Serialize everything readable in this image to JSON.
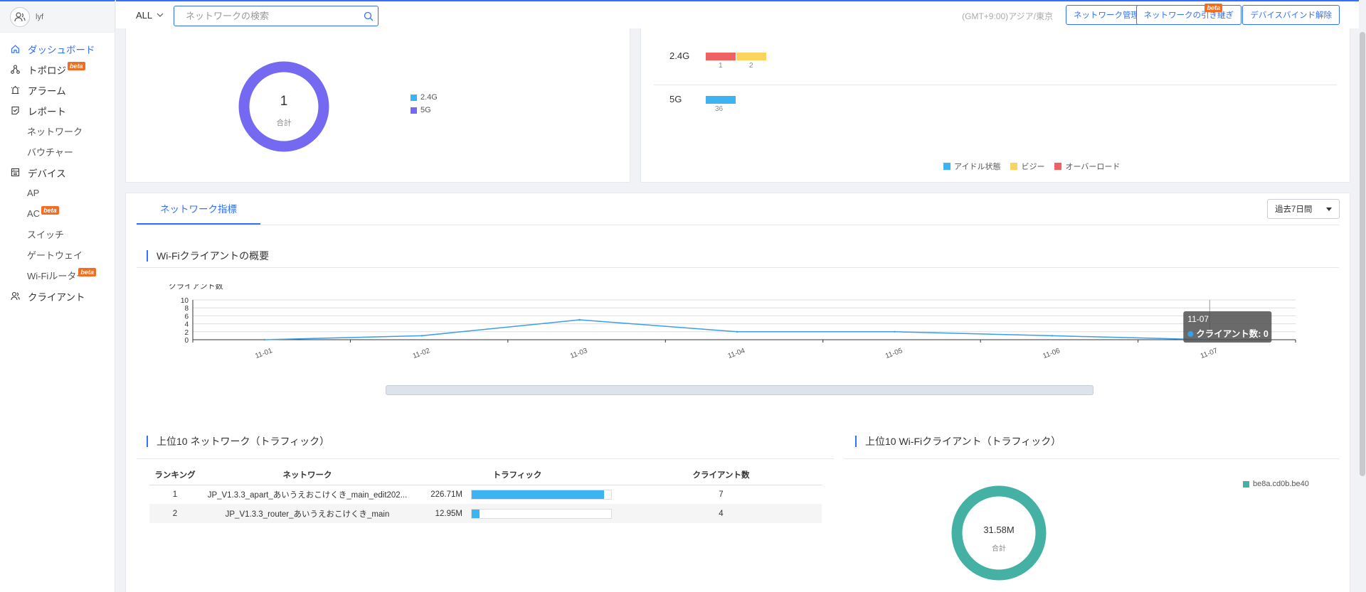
{
  "user": {
    "avatar_text": "&R",
    "name": "lyf"
  },
  "sidebar": {
    "items": [
      {
        "label": "ダッシュボード",
        "icon": "home-icon",
        "active": true
      },
      {
        "label": "トポロジ",
        "icon": "topology-icon",
        "beta": "beta"
      },
      {
        "label": "アラーム",
        "icon": "alarm-icon"
      },
      {
        "label": "レポート",
        "icon": "report-icon",
        "subs": [
          "ネットワーク",
          "バウチャー"
        ]
      },
      {
        "label": "デバイス",
        "icon": "device-icon",
        "subs": [
          "AP",
          "AC",
          "スイッチ",
          "ゲートウェイ",
          "Wi-Fiルーター"
        ]
      },
      {
        "label": "クライアント",
        "icon": "client-icon"
      }
    ],
    "sub_beta": "beta"
  },
  "topbar": {
    "all_label": "ALL",
    "search_placeholder": "ネットワークの検索",
    "timezone": "(GMT+9:00)アジア/東京",
    "btn_manage": "ネットワーク管理",
    "btn_transfer": "ネットワークの引き継ぎ",
    "btn_transfer_badge": "beta",
    "btn_unbind": "デバイスバインド解除"
  },
  "radio_card": {
    "total_value": "1",
    "total_label": "合計",
    "legend": [
      {
        "label": "2.4G",
        "color": "#3db4f2"
      },
      {
        "label": "5G",
        "color": "#7469f0"
      }
    ],
    "donut_color": "#7469f0"
  },
  "load_card": {
    "rows": [
      {
        "band": "2.4G",
        "segments": [
          {
            "value": "1",
            "color": "#f06161"
          },
          {
            "value": "2",
            "color": "#fcd35c"
          }
        ]
      },
      {
        "band": "5G",
        "segments": [
          {
            "value": "36",
            "color": "#3db4f2"
          }
        ]
      }
    ],
    "legend": [
      {
        "label": "アイドル状態",
        "color": "#3db4f2"
      },
      {
        "label": "ビジー",
        "color": "#fcd35c"
      },
      {
        "label": "オーバーロード",
        "color": "#f06161"
      }
    ]
  },
  "metrics": {
    "tab_label": "ネットワーク指標",
    "period": "過去7日間",
    "wifi_title": "Wi-Fiクライアントの概要",
    "y_label": "クライアント数",
    "tooltip_date": "11-07",
    "tooltip_text": "クライアント数: 0",
    "top_network_title": "上位10 ネットワーク（トラフィック）",
    "top_client_title": "上位10 Wi-Fiクライアント（トラフィック）",
    "table_headers": [
      "ランキング",
      "ネットワーク",
      "トラフィック",
      "クライアント数"
    ],
    "table_rows": [
      {
        "rank": "1",
        "network": "JP_V1.3.3_apart_あいうえおこけくき_main_edit202...",
        "traffic": "226.71M",
        "ratio": 0.95,
        "clients": "7"
      },
      {
        "rank": "2",
        "network": "JP_V1.3.3_router_あいうえおこけくき_main",
        "traffic": "12.95M",
        "ratio": 0.055,
        "clients": "4"
      }
    ],
    "client_total": "31.58M",
    "client_total_label": "合計",
    "client_legend": "be8a.cd0b.be40",
    "client_color": "#45b0a4"
  },
  "chart_data": {
    "type": "line",
    "categories": [
      "11-01",
      "11-02",
      "11-03",
      "11-04",
      "11-05",
      "11-06",
      "11-07"
    ],
    "series": [
      {
        "values": [
          0,
          1,
          5,
          2,
          2,
          1,
          0
        ]
      }
    ],
    "ylabel": "クライアント数",
    "ylim": [
      0,
      10
    ],
    "yticks": [
      0,
      2,
      4,
      6,
      8,
      10
    ],
    "color": "#3a9ee8",
    "grid": true
  }
}
